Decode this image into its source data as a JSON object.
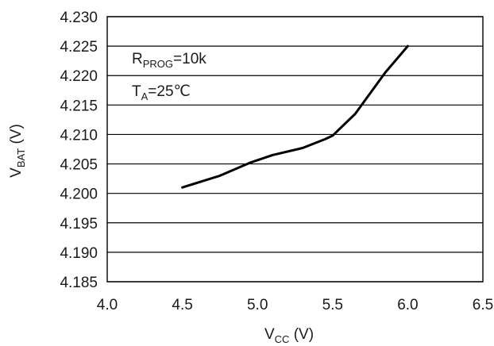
{
  "chart_data": {
    "type": "line",
    "xlabel": {
      "main": "V",
      "sub": "CC",
      "unit": " (V)"
    },
    "ylabel": {
      "main": "V",
      "sub": "BAT",
      "unit": " (V)"
    },
    "xlim": [
      4.0,
      6.5
    ],
    "ylim": [
      4.185,
      4.23
    ],
    "x_ticks": [
      "4.0",
      "4.5",
      "5.0",
      "5.5",
      "6.0",
      "6.5"
    ],
    "y_ticks": [
      "4.230",
      "4.225",
      "4.220",
      "4.215",
      "4.210",
      "4.205",
      "4.200",
      "4.195",
      "4.190",
      "4.185"
    ],
    "grid": "horizontal",
    "legend": "none",
    "annotations": [
      {
        "main": "R",
        "sub": "PROG",
        "rest": "=10k"
      },
      {
        "main": "T",
        "sub": "A",
        "rest": "=25℃"
      }
    ],
    "series": [
      {
        "x": [
          4.5,
          4.75,
          4.95,
          5.1,
          5.3,
          5.45,
          5.5,
          5.65,
          5.85,
          6.0
        ],
        "y": [
          4.201,
          4.203,
          4.2052,
          4.2065,
          4.2077,
          4.2092,
          4.2098,
          4.2135,
          4.2205,
          4.225
        ]
      }
    ]
  }
}
